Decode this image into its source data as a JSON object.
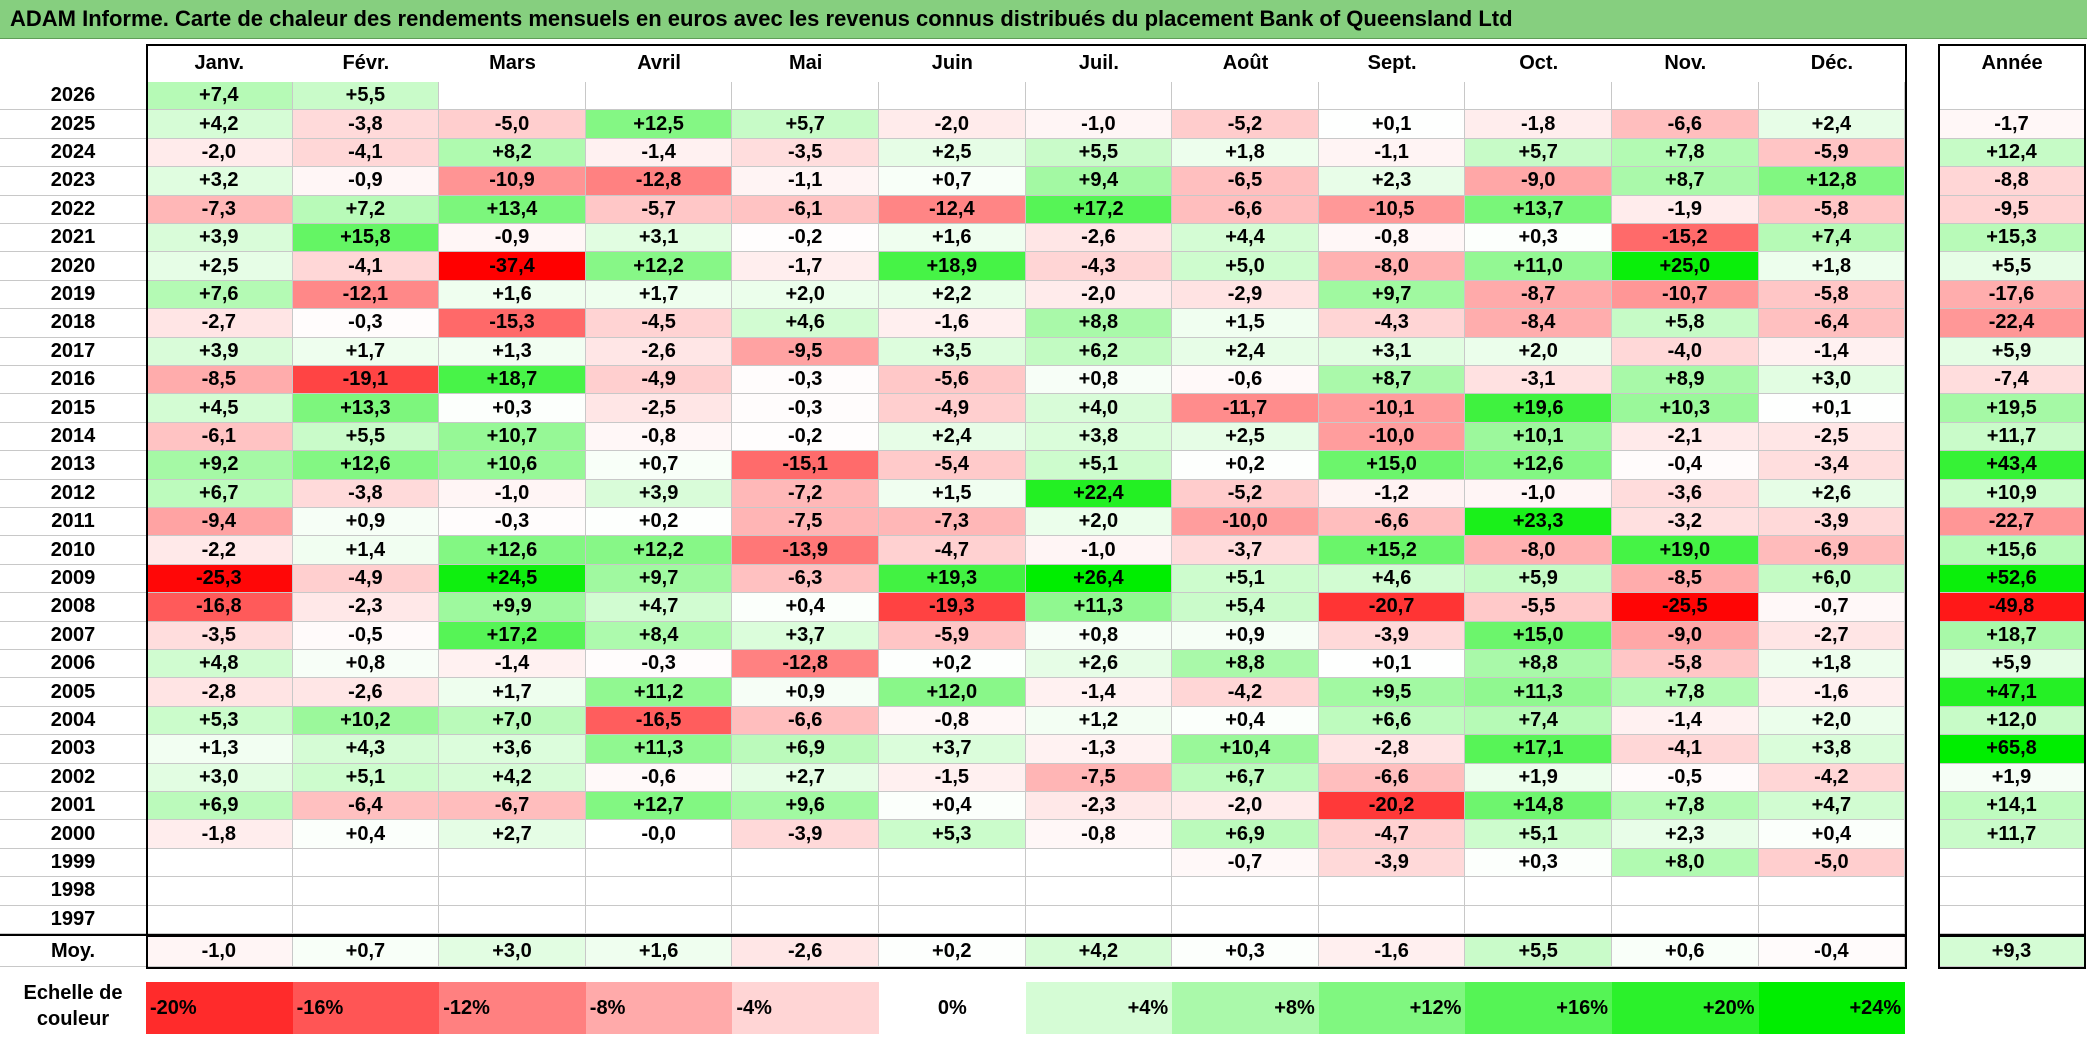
{
  "title": "ADAM Informe. Carte de chaleur des rendements mensuels en euros avec les revenus connus distribués du placement Bank of Queensland Ltd",
  "chart_data": {
    "type": "heatmap",
    "title": "ADAM Informe. Carte de chaleur des rendements mensuels en euros avec les revenus connus distribués du placement Bank of Queensland Ltd",
    "columns": [
      "Janv.",
      "Févr.",
      "Mars",
      "Avril",
      "Mai",
      "Juin",
      "Juil.",
      "Août",
      "Sept.",
      "Oct.",
      "Nov.",
      "Déc."
    ],
    "year_column_label": "Année",
    "rows": [
      {
        "year": "2026",
        "months": [
          "+7,4",
          "+5,5",
          "",
          "",
          "",
          "",
          "",
          "",
          "",
          "",
          "",
          ""
        ],
        "annual": ""
      },
      {
        "year": "2025",
        "months": [
          "+4,2",
          "-3,8",
          "-5,0",
          "+12,5",
          "+5,7",
          "-2,0",
          "-1,0",
          "-5,2",
          "+0,1",
          "-1,8",
          "-6,6",
          "+2,4"
        ],
        "annual": "-1,7"
      },
      {
        "year": "2024",
        "months": [
          "-2,0",
          "-4,1",
          "+8,2",
          "-1,4",
          "-3,5",
          "+2,5",
          "+5,5",
          "+1,8",
          "-1,1",
          "+5,7",
          "+7,8",
          "-5,9"
        ],
        "annual": "+12,4"
      },
      {
        "year": "2023",
        "months": [
          "+3,2",
          "-0,9",
          "-10,9",
          "-12,8",
          "-1,1",
          "+0,7",
          "+9,4",
          "-6,5",
          "+2,3",
          "-9,0",
          "+8,7",
          "+12,8"
        ],
        "annual": "-8,8"
      },
      {
        "year": "2022",
        "months": [
          "-7,3",
          "+7,2",
          "+13,4",
          "-5,7",
          "-6,1",
          "-12,4",
          "+17,2",
          "-6,6",
          "-10,5",
          "+13,7",
          "-1,9",
          "-5,8"
        ],
        "annual": "-9,5"
      },
      {
        "year": "2021",
        "months": [
          "+3,9",
          "+15,8",
          "-0,9",
          "+3,1",
          "-0,2",
          "+1,6",
          "-2,6",
          "+4,4",
          "-0,8",
          "+0,3",
          "-15,2",
          "+7,4"
        ],
        "annual": "+15,3"
      },
      {
        "year": "2020",
        "months": [
          "+2,5",
          "-4,1",
          "-37,4",
          "+12,2",
          "-1,7",
          "+18,9",
          "-4,3",
          "+5,0",
          "-8,0",
          "+11,0",
          "+25,0",
          "+1,8"
        ],
        "annual": "+5,5"
      },
      {
        "year": "2019",
        "months": [
          "+7,6",
          "-12,1",
          "+1,6",
          "+1,7",
          "+2,0",
          "+2,2",
          "-2,0",
          "-2,9",
          "+9,7",
          "-8,7",
          "-10,7",
          "-5,8"
        ],
        "annual": "-17,6"
      },
      {
        "year": "2018",
        "months": [
          "-2,7",
          "-0,3",
          "-15,3",
          "-4,5",
          "+4,6",
          "-1,6",
          "+8,8",
          "+1,5",
          "-4,3",
          "-8,4",
          "+5,8",
          "-6,4"
        ],
        "annual": "-22,4"
      },
      {
        "year": "2017",
        "months": [
          "+3,9",
          "+1,7",
          "+1,3",
          "-2,6",
          "-9,5",
          "+3,5",
          "+6,2",
          "+2,4",
          "+3,1",
          "+2,0",
          "-4,0",
          "-1,4"
        ],
        "annual": "+5,9"
      },
      {
        "year": "2016",
        "months": [
          "-8,5",
          "-19,1",
          "+18,7",
          "-4,9",
          "-0,3",
          "-5,6",
          "+0,8",
          "-0,6",
          "+8,7",
          "-3,1",
          "+8,9",
          "+3,0"
        ],
        "annual": "-7,4"
      },
      {
        "year": "2015",
        "months": [
          "+4,5",
          "+13,3",
          "+0,3",
          "-2,5",
          "-0,3",
          "-4,9",
          "+4,0",
          "-11,7",
          "-10,1",
          "+19,6",
          "+10,3",
          "+0,1"
        ],
        "annual": "+19,5"
      },
      {
        "year": "2014",
        "months": [
          "-6,1",
          "+5,5",
          "+10,7",
          "-0,8",
          "-0,2",
          "+2,4",
          "+3,8",
          "+2,5",
          "-10,0",
          "+10,1",
          "-2,1",
          "-2,5"
        ],
        "annual": "+11,7"
      },
      {
        "year": "2013",
        "months": [
          "+9,2",
          "+12,6",
          "+10,6",
          "+0,7",
          "-15,1",
          "-5,4",
          "+5,1",
          "+0,2",
          "+15,0",
          "+12,6",
          "-0,4",
          "-3,4"
        ],
        "annual": "+43,4"
      },
      {
        "year": "2012",
        "months": [
          "+6,7",
          "-3,8",
          "-1,0",
          "+3,9",
          "-7,2",
          "+1,5",
          "+22,4",
          "-5,2",
          "-1,2",
          "-1,0",
          "-3,6",
          "+2,6"
        ],
        "annual": "+10,9"
      },
      {
        "year": "2011",
        "months": [
          "-9,4",
          "+0,9",
          "-0,3",
          "+0,2",
          "-7,5",
          "-7,3",
          "+2,0",
          "-10,0",
          "-6,6",
          "+23,3",
          "-3,2",
          "-3,9"
        ],
        "annual": "-22,7"
      },
      {
        "year": "2010",
        "months": [
          "-2,2",
          "+1,4",
          "+12,6",
          "+12,2",
          "-13,9",
          "-4,7",
          "-1,0",
          "-3,7",
          "+15,2",
          "-8,0",
          "+19,0",
          "-6,9"
        ],
        "annual": "+15,6"
      },
      {
        "year": "2009",
        "months": [
          "-25,3",
          "-4,9",
          "+24,5",
          "+9,7",
          "-6,3",
          "+19,3",
          "+26,4",
          "+5,1",
          "+4,6",
          "+5,9",
          "-8,5",
          "+6,0"
        ],
        "annual": "+52,6"
      },
      {
        "year": "2008",
        "months": [
          "-16,8",
          "-2,3",
          "+9,9",
          "+4,7",
          "+0,4",
          "-19,3",
          "+11,3",
          "+5,4",
          "-20,7",
          "-5,5",
          "-25,5",
          "-0,7"
        ],
        "annual": "-49,8"
      },
      {
        "year": "2007",
        "months": [
          "-3,5",
          "-0,5",
          "+17,2",
          "+8,4",
          "+3,7",
          "-5,9",
          "+0,8",
          "+0,9",
          "-3,9",
          "+15,0",
          "-9,0",
          "-2,7"
        ],
        "annual": "+18,7"
      },
      {
        "year": "2006",
        "months": [
          "+4,8",
          "+0,8",
          "-1,4",
          "-0,3",
          "-12,8",
          "+0,2",
          "+2,6",
          "+8,8",
          "+0,1",
          "+8,8",
          "-5,8",
          "+1,8"
        ],
        "annual": "+5,9"
      },
      {
        "year": "2005",
        "months": [
          "-2,8",
          "-2,6",
          "+1,7",
          "+11,2",
          "+0,9",
          "+12,0",
          "-1,4",
          "-4,2",
          "+9,5",
          "+11,3",
          "+7,8",
          "-1,6"
        ],
        "annual": "+47,1"
      },
      {
        "year": "2004",
        "months": [
          "+5,3",
          "+10,2",
          "+7,0",
          "-16,5",
          "-6,6",
          "-0,8",
          "+1,2",
          "+0,4",
          "+6,6",
          "+7,4",
          "-1,4",
          "+2,0"
        ],
        "annual": "+12,0"
      },
      {
        "year": "2003",
        "months": [
          "+1,3",
          "+4,3",
          "+3,6",
          "+11,3",
          "+6,9",
          "+3,7",
          "-1,3",
          "+10,4",
          "-2,8",
          "+17,1",
          "-4,1",
          "+3,8"
        ],
        "annual": "+65,8"
      },
      {
        "year": "2002",
        "months": [
          "+3,0",
          "+5,1",
          "+4,2",
          "-0,6",
          "+2,7",
          "-1,5",
          "-7,5",
          "+6,7",
          "-6,6",
          "+1,9",
          "-0,5",
          "-4,2"
        ],
        "annual": "+1,9"
      },
      {
        "year": "2001",
        "months": [
          "+6,9",
          "-6,4",
          "-6,7",
          "+12,7",
          "+9,6",
          "+0,4",
          "-2,3",
          "-2,0",
          "-20,2",
          "+14,8",
          "+7,8",
          "+4,7"
        ],
        "annual": "+14,1"
      },
      {
        "year": "2000",
        "months": [
          "-1,8",
          "+0,4",
          "+2,7",
          "-0,0",
          "-3,9",
          "+5,3",
          "-0,8",
          "+6,9",
          "-4,7",
          "+5,1",
          "+2,3",
          "+0,4"
        ],
        "annual": "+11,7"
      },
      {
        "year": "1999",
        "months": [
          "",
          "",
          "",
          "",
          "",
          "",
          "",
          "-0,7",
          "-3,9",
          "+0,3",
          "+8,0",
          "-5,0"
        ],
        "annual": ""
      },
      {
        "year": "1998",
        "months": [
          "",
          "",
          "",
          "",
          "",
          "",
          "",
          "",
          "",
          "",
          "",
          ""
        ],
        "annual": ""
      },
      {
        "year": "1997",
        "months": [
          "",
          "",
          "",
          "",
          "",
          "",
          "",
          "",
          "",
          "",
          "",
          ""
        ],
        "annual": ""
      }
    ],
    "average": {
      "label": "Moy.",
      "months": [
        "-1,0",
        "+0,7",
        "+3,0",
        "+1,6",
        "-2,6",
        "+0,2",
        "+4,2",
        "+0,3",
        "-1,6",
        "+5,5",
        "+0,6",
        "-0,4"
      ],
      "annual": "+9,3"
    },
    "scale": {
      "label": "Echelle de couleur",
      "labels": [
        "-20%",
        "-16%",
        "-12%",
        "-8%",
        "-4%",
        "0%",
        "+4%",
        "+8%",
        "+12%",
        "+16%",
        "+20%",
        "+24%"
      ],
      "values": [
        -20,
        -16,
        -12,
        -8,
        -4,
        0,
        4,
        8,
        12,
        16,
        20,
        24
      ]
    },
    "colors": {
      "negative": "#ff0000",
      "positive": "#00ee00",
      "neutral": "#ffffff",
      "title_bg": "#86cf7f"
    }
  }
}
